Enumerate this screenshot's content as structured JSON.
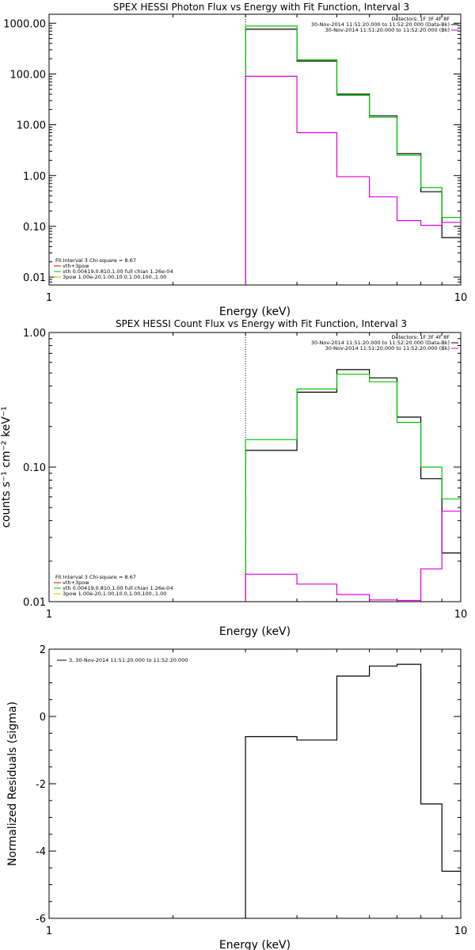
{
  "chart_data": [
    {
      "type": "line",
      "title": "SPEX HESSI Photon Flux vs Energy with Fit Function, Interval 3",
      "xlabel": "Energy (keV)",
      "ylabel": "",
      "xscale": "log",
      "yscale": "log",
      "xlim": [
        1,
        10
      ],
      "ylim": [
        0.007,
        1500
      ],
      "xticks": [
        1,
        10
      ],
      "xtick_labels": [
        "1",
        "10"
      ],
      "yticks": [
        0.01,
        0.1,
        1,
        10,
        100,
        1000
      ],
      "ytick_labels": [
        "0.01",
        "0.10",
        "1.00",
        "10.00",
        "100.00",
        "1000.00"
      ],
      "vline": 3.0,
      "legend_tr": [
        {
          "text": "Detectors: 1F 3F 4F 8F",
          "color": "#000000"
        },
        {
          "text": "30-Nov-2014 11:51:20.000 to 11:52:20.000 (Data-Bk)",
          "color": "#000000"
        },
        {
          "text": "30-Nov-2014 11:51:20.000 to 11:52:20.000 (Bk)",
          "color": "#e000e0"
        }
      ],
      "legend_bl": [
        {
          "text": "Fit Interval 3   Chi-square = 8.67",
          "color": null
        },
        {
          "text": "vth+3pow",
          "color": "#e00000"
        },
        {
          "text": "vth 0.00419,0.810,1.00  full chian 1.26e-04",
          "color": "#00c800"
        },
        {
          "text": "3pow 1.00e-20,1.00,10.0,1.00,100.,1.00",
          "color": "#e0b000"
        }
      ],
      "series": [
        {
          "color": "#000000",
          "edges": [
            3,
            4,
            5,
            6,
            7,
            8,
            9,
            10
          ],
          "values": [
            760,
            180,
            40,
            15,
            2.7,
            0.48,
            0.06
          ]
        },
        {
          "color": "#00c800",
          "edges": [
            3,
            4,
            5,
            6,
            7,
            8,
            9,
            10
          ],
          "values": [
            880,
            190,
            38,
            14,
            2.5,
            0.58,
            0.15
          ]
        },
        {
          "color": "#e000e0",
          "edges": [
            3,
            4,
            5,
            6,
            7,
            8,
            9,
            10
          ],
          "values": [
            90,
            7,
            0.95,
            0.38,
            0.13,
            0.105,
            0.12
          ]
        }
      ]
    },
    {
      "type": "line",
      "title": "SPEX HESSI Count Flux vs Energy with Fit Function, Interval 3",
      "xlabel": "Energy (keV)",
      "ylabel": "counts s⁻¹ cm⁻² keV⁻¹",
      "xscale": "log",
      "yscale": "log",
      "xlim": [
        1,
        10
      ],
      "ylim": [
        0.01,
        1.0
      ],
      "xticks": [
        1,
        10
      ],
      "xtick_labels": [
        "1",
        "10"
      ],
      "yticks": [
        0.01,
        0.1,
        1.0
      ],
      "ytick_labels": [
        "0.01",
        "0.10",
        "1.00"
      ],
      "vline": 3.0,
      "legend_tr": [
        {
          "text": "Detectors: 1F 3F 4F 8F",
          "color": "#000000"
        },
        {
          "text": "30-Nov-2014 11:51:20.000 to 11:52:20.000 (Data-Bk)",
          "color": "#000000"
        },
        {
          "text": "30-Nov-2014 11:51:20.000 to 11:52:20.000 (Bk)",
          "color": "#e000e0"
        }
      ],
      "legend_bl": [
        {
          "text": "Fit Interval 3   Chi-square = 8.67",
          "color": null
        },
        {
          "text": "vth+3pow",
          "color": "#e00000"
        },
        {
          "text": "vth 0.00419,0.810,1.00  full chian 1.26e-04",
          "color": "#00c800"
        },
        {
          "text": "3pow 1.00e-20,1.00,10.0,1.00,100.,1.00",
          "color": "#e0b000"
        }
      ],
      "series": [
        {
          "color": "#000000",
          "edges": [
            3,
            4,
            5,
            6,
            7,
            8,
            9,
            10
          ],
          "values": [
            0.133,
            0.36,
            0.53,
            0.46,
            0.235,
            0.082,
            0.023
          ]
        },
        {
          "color": "#00c800",
          "edges": [
            3,
            4,
            5,
            6,
            7,
            8,
            9,
            10
          ],
          "values": [
            0.16,
            0.38,
            0.49,
            0.43,
            0.215,
            0.1,
            0.058
          ]
        },
        {
          "color": "#e000e0",
          "edges": [
            3,
            4,
            5,
            6,
            7,
            8,
            9,
            10
          ],
          "values": [
            0.016,
            0.0135,
            0.0113,
            0.0103,
            0.0102,
            0.0175,
            0.047
          ]
        }
      ]
    },
    {
      "type": "line",
      "title": "",
      "xlabel": "Energy (keV)",
      "ylabel": "Normalized Residuals (sigma)",
      "xscale": "log",
      "yscale": "linear",
      "xlim": [
        1,
        10
      ],
      "ylim": [
        -6,
        2
      ],
      "xticks": [
        1,
        10
      ],
      "xtick_labels": [
        "1",
        "10"
      ],
      "yticks": [
        -6,
        -4,
        -2,
        0,
        2
      ],
      "ytick_labels": [
        "-6",
        "-4",
        "-2",
        "0",
        "2"
      ],
      "legend_tl": [
        {
          "text": "3, 30-Nov-2014 11:51:20.000 to 11:52:20.000",
          "color": "#000000"
        }
      ],
      "series": [
        {
          "color": "#000000",
          "edges": [
            3,
            4,
            5,
            6,
            7,
            8,
            9,
            10
          ],
          "values": [
            -0.6,
            -0.7,
            1.2,
            1.5,
            1.55,
            -2.6,
            -4.6
          ]
        }
      ]
    }
  ]
}
